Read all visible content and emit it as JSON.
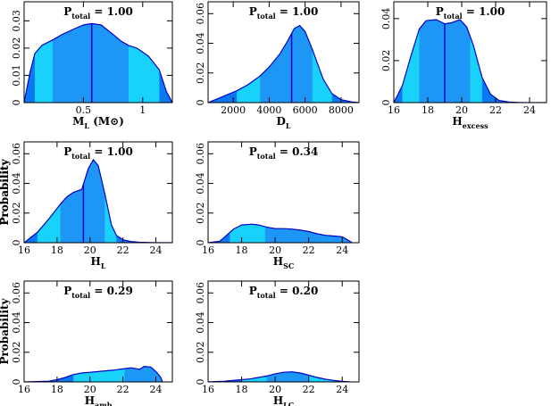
{
  "colors": {
    "dark": "#0a78f0",
    "mid": "#1e96f5",
    "light": "#18d2fb",
    "line": "#0000c8",
    "axis": "#000000"
  },
  "chart_data": [
    {
      "id": "ML",
      "type": "area",
      "xlabel": {
        "main": "M",
        "sub": "L",
        "suffix": " (M⊙)"
      },
      "ylabel": "",
      "ptotal": {
        "main": "P",
        "sub": "total",
        "value": " = 1.00"
      },
      "xlim": [
        0,
        1.25
      ],
      "ylim": [
        0,
        0.037
      ],
      "xticks": [
        0.5,
        1.0
      ],
      "xticklabels": [
        "0.5",
        "1"
      ],
      "yticks": [
        0,
        0.01,
        0.02,
        0.03
      ],
      "yticklabels": [
        "0",
        "0.01",
        "0.02",
        "0.03"
      ],
      "median": 0.57,
      "band1": [
        0.24,
        0.88
      ],
      "band2": [
        0.09,
        1.14
      ],
      "x": [
        0.0,
        0.05,
        0.09,
        0.15,
        0.24,
        0.32,
        0.42,
        0.5,
        0.57,
        0.65,
        0.75,
        0.82,
        0.88,
        0.95,
        1.05,
        1.14,
        1.2,
        1.25
      ],
      "y": [
        0.0,
        0.011,
        0.018,
        0.021,
        0.023,
        0.025,
        0.027,
        0.0285,
        0.029,
        0.0285,
        0.025,
        0.0225,
        0.021,
        0.02,
        0.017,
        0.012,
        0.004,
        0.0
      ]
    },
    {
      "id": "DL",
      "type": "area",
      "xlabel": {
        "main": "D",
        "sub": "L",
        "suffix": ""
      },
      "ylabel": "",
      "ptotal": {
        "main": "P",
        "sub": "total",
        "value": " = 1.00"
      },
      "xlim": [
        600,
        9000
      ],
      "ylim": [
        0,
        0.068
      ],
      "xticks": [
        2000,
        4000,
        6000,
        8000
      ],
      "xticklabels": [
        "2000",
        "4000",
        "6000",
        "8000"
      ],
      "yticks": [
        0,
        0.02,
        0.04,
        0.06
      ],
      "yticklabels": [
        "0",
        "0.02",
        "0.04",
        "0.06"
      ],
      "median": 5250,
      "band1": [
        3500,
        6400
      ],
      "band2": [
        2200,
        7500
      ],
      "x": [
        600,
        1200,
        1800,
        2200,
        2800,
        3500,
        4000,
        4600,
        5000,
        5400,
        5700,
        6000,
        6400,
        7000,
        7500,
        8000,
        8600,
        9000
      ],
      "y": [
        0.0,
        0.003,
        0.006,
        0.008,
        0.012,
        0.018,
        0.024,
        0.033,
        0.041,
        0.05,
        0.052,
        0.048,
        0.036,
        0.016,
        0.006,
        0.002,
        0.0005,
        0.0
      ]
    },
    {
      "id": "Hexcess",
      "type": "area",
      "xlabel": {
        "main": "H",
        "sub": "excess",
        "suffix": ""
      },
      "ylabel": "",
      "ptotal": {
        "main": "P",
        "sub": "total",
        "value": " = 1.00"
      },
      "xlim": [
        16,
        25
      ],
      "ylim": [
        0,
        0.048
      ],
      "xticks": [
        16,
        18,
        20,
        22,
        24
      ],
      "xticklabels": [
        "16",
        "18",
        "20",
        "22",
        "24"
      ],
      "yticks": [
        0,
        0.02,
        0.04
      ],
      "yticklabels": [
        "0",
        "0.02",
        "0.04"
      ],
      "median": 19.0,
      "band1": [
        17.5,
        20.5
      ],
      "band2": [
        16.5,
        21.2
      ],
      "x": [
        16.0,
        16.5,
        17.0,
        17.5,
        17.9,
        18.5,
        19.0,
        19.4,
        19.9,
        20.3,
        20.7,
        21.2,
        21.7,
        22.2,
        22.8,
        23.5,
        25.0
      ],
      "y": [
        0.0,
        0.008,
        0.022,
        0.035,
        0.039,
        0.0395,
        0.0375,
        0.038,
        0.0395,
        0.036,
        0.027,
        0.012,
        0.004,
        0.001,
        0.0003,
        0.0,
        0.0
      ]
    },
    {
      "id": "HL",
      "type": "area",
      "xlabel": {
        "main": "H",
        "sub": "L",
        "suffix": ""
      },
      "ylabel": "Probability",
      "ptotal": {
        "main": "P",
        "sub": "total",
        "value": " = 1.00"
      },
      "xlim": [
        16,
        25
      ],
      "ylim": [
        0,
        0.068
      ],
      "xticks": [
        16,
        18,
        20,
        22,
        24
      ],
      "xticklabels": [
        "16",
        "18",
        "20",
        "22",
        "24"
      ],
      "yticks": [
        0,
        0.02,
        0.04,
        0.06
      ],
      "yticklabels": [
        "0",
        "0.02",
        "0.04",
        "0.06"
      ],
      "median": 19.6,
      "band1": [
        18.2,
        20.9
      ],
      "band2": [
        16.8,
        21.6
      ],
      "x": [
        16.0,
        16.8,
        17.5,
        18.2,
        18.6,
        19.0,
        19.5,
        19.9,
        20.2,
        20.5,
        20.9,
        21.3,
        21.6,
        22.0,
        22.5,
        23.0,
        24.0,
        25.0
      ],
      "y": [
        0.0,
        0.007,
        0.016,
        0.026,
        0.031,
        0.034,
        0.036,
        0.05,
        0.056,
        0.052,
        0.033,
        0.012,
        0.005,
        0.002,
        0.0008,
        0.0003,
        0.0,
        0.0
      ]
    },
    {
      "id": "HSC",
      "type": "area",
      "xlabel": {
        "main": "H",
        "sub": "SC",
        "suffix": ""
      },
      "ylabel": "Probability",
      "ptotal": {
        "main": "P",
        "sub": "total",
        "value": " = 0.34"
      },
      "xlim": [
        16,
        25
      ],
      "ylim": [
        0,
        0.068
      ],
      "xticks": [
        16,
        18,
        20,
        22,
        24
      ],
      "xticklabels": [
        "16",
        "18",
        "20",
        "22",
        "24"
      ],
      "yticks": [
        0,
        0.02,
        0.04,
        0.06
      ],
      "yticklabels": [
        "0",
        "0.02",
        "0.04",
        "0.06"
      ],
      "median": null,
      "band1": [
        19.4,
        24.6
      ],
      "band2": [
        17.3,
        24.6
      ],
      "x": [
        16.0,
        16.7,
        17.0,
        17.5,
        18.0,
        18.6,
        19.0,
        19.5,
        20.0,
        20.5,
        21.0,
        21.5,
        22.0,
        22.5,
        23.0,
        23.5,
        24.0,
        24.3,
        24.6
      ],
      "y": [
        0.0,
        0.001,
        0.004,
        0.009,
        0.012,
        0.0125,
        0.012,
        0.0105,
        0.0095,
        0.0095,
        0.0092,
        0.0085,
        0.0075,
        0.006,
        0.005,
        0.0045,
        0.004,
        0.002,
        0.0
      ]
    },
    {
      "id": "Hamb",
      "type": "area",
      "xlabel": {
        "main": "H",
        "sub": "amb",
        "suffix": ""
      },
      "ylabel": "Probability",
      "ptotal": {
        "main": "P",
        "sub": "total",
        "value": " = 0.29"
      },
      "xlim": [
        16,
        25
      ],
      "ylim": [
        0,
        0.068
      ],
      "xticks": [
        16,
        18,
        20,
        22,
        24
      ],
      "xticklabels": [
        "16",
        "18",
        "20",
        "22",
        "24"
      ],
      "yticks": [
        0,
        0.02,
        0.04,
        0.06
      ],
      "yticklabels": [
        "0",
        "0.02",
        "0.04",
        "0.06"
      ],
      "median": null,
      "band1": [
        22.1,
        24.4
      ],
      "band2": [
        19.0,
        24.4
      ],
      "x": [
        16.0,
        17.5,
        18.0,
        18.5,
        19.0,
        19.5,
        20.0,
        20.5,
        21.0,
        21.5,
        22.0,
        22.5,
        23.0,
        23.3,
        23.7,
        24.0,
        24.3,
        24.4
      ],
      "y": [
        0.0,
        0.0005,
        0.0015,
        0.003,
        0.005,
        0.006,
        0.0065,
        0.007,
        0.0075,
        0.008,
        0.0088,
        0.0095,
        0.0085,
        0.0105,
        0.01,
        0.007,
        0.003,
        0.0
      ]
    },
    {
      "id": "HLC",
      "type": "area",
      "xlabel": {
        "main": "H",
        "sub": "LC",
        "suffix": ""
      },
      "ylabel": "",
      "ptotal": {
        "main": "P",
        "sub": "total",
        "value": " = 0.20"
      },
      "xlim": [
        16,
        25
      ],
      "ylim": [
        0,
        0.068
      ],
      "xticks": [
        16,
        18,
        20,
        22,
        24
      ],
      "xticklabels": [
        "16",
        "18",
        "20",
        "22",
        "24"
      ],
      "yticks": [
        0,
        0.02,
        0.04,
        0.06
      ],
      "yticklabels": [
        "0",
        "0.02",
        "0.04",
        "0.06"
      ],
      "median": null,
      "band1": [
        19.5,
        22.0
      ],
      "band2": [
        18.0,
        23.5
      ],
      "x": [
        16.0,
        17.0,
        18.0,
        18.5,
        19.0,
        19.5,
        20.0,
        20.5,
        21.0,
        21.5,
        22.0,
        22.5,
        23.0,
        23.5,
        24.0,
        24.5
      ],
      "y": [
        0.0,
        0.0005,
        0.0015,
        0.002,
        0.003,
        0.004,
        0.0055,
        0.0065,
        0.0068,
        0.006,
        0.0045,
        0.003,
        0.0018,
        0.001,
        0.0004,
        0.0
      ]
    }
  ]
}
